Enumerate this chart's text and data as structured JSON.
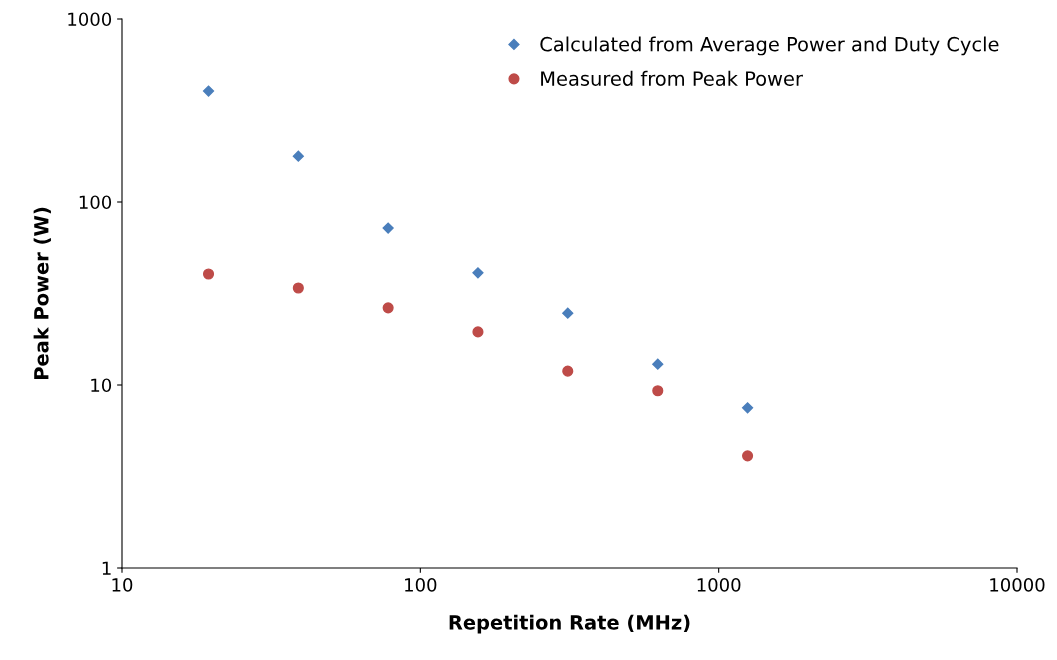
{
  "chart_data": {
    "type": "scatter",
    "xlabel": "Repetition Rate (MHz)",
    "ylabel": "Peak Power (W)",
    "log": "xy",
    "xlim": [
      10,
      10000
    ],
    "ylim": [
      1,
      1000
    ],
    "xticks": [
      10,
      100,
      1000,
      10000
    ],
    "yticks": [
      1,
      10,
      100,
      1000
    ],
    "grid": false,
    "legend": "top right",
    "series": [
      {
        "name": "Calculated from Average Power and Duty Cycle",
        "color": "#4a7ebb",
        "marker": "diamond",
        "x": [
          19.5,
          39,
          78,
          156,
          312,
          625,
          1250
        ],
        "values": [
          404,
          178,
          72,
          41,
          24.7,
          13.0,
          7.5
        ]
      },
      {
        "name": "Measured from Peak Power",
        "color": "#be4b48",
        "marker": "circle",
        "x": [
          19.5,
          39,
          78,
          156,
          312,
          625,
          1250
        ],
        "values": [
          40.4,
          33.9,
          26.4,
          19.5,
          11.9,
          9.3,
          4.1
        ]
      }
    ]
  }
}
